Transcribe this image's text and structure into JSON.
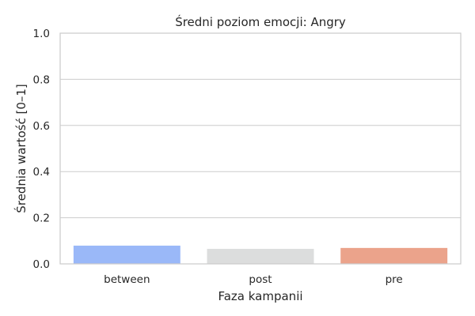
{
  "chart_data": {
    "type": "bar",
    "title": "Średni poziom emocji: Angry",
    "xlabel": "Faza kampanii",
    "ylabel": "Średnia wartość [0–1]",
    "categories": [
      "between",
      "post",
      "pre"
    ],
    "values": [
      0.079,
      0.065,
      0.069
    ],
    "colors": [
      "#9ab8f8",
      "#dcdddd",
      "#eba38b"
    ],
    "ylim": [
      0,
      1
    ],
    "yticks": [
      0.0,
      0.2,
      0.4,
      0.6,
      0.8,
      1.0
    ],
    "ytick_labels": [
      "0.0",
      "0.2",
      "0.4",
      "0.6",
      "0.8",
      "1.0"
    ],
    "grid": "horizontal",
    "style": "seaborn-whitegrid"
  }
}
